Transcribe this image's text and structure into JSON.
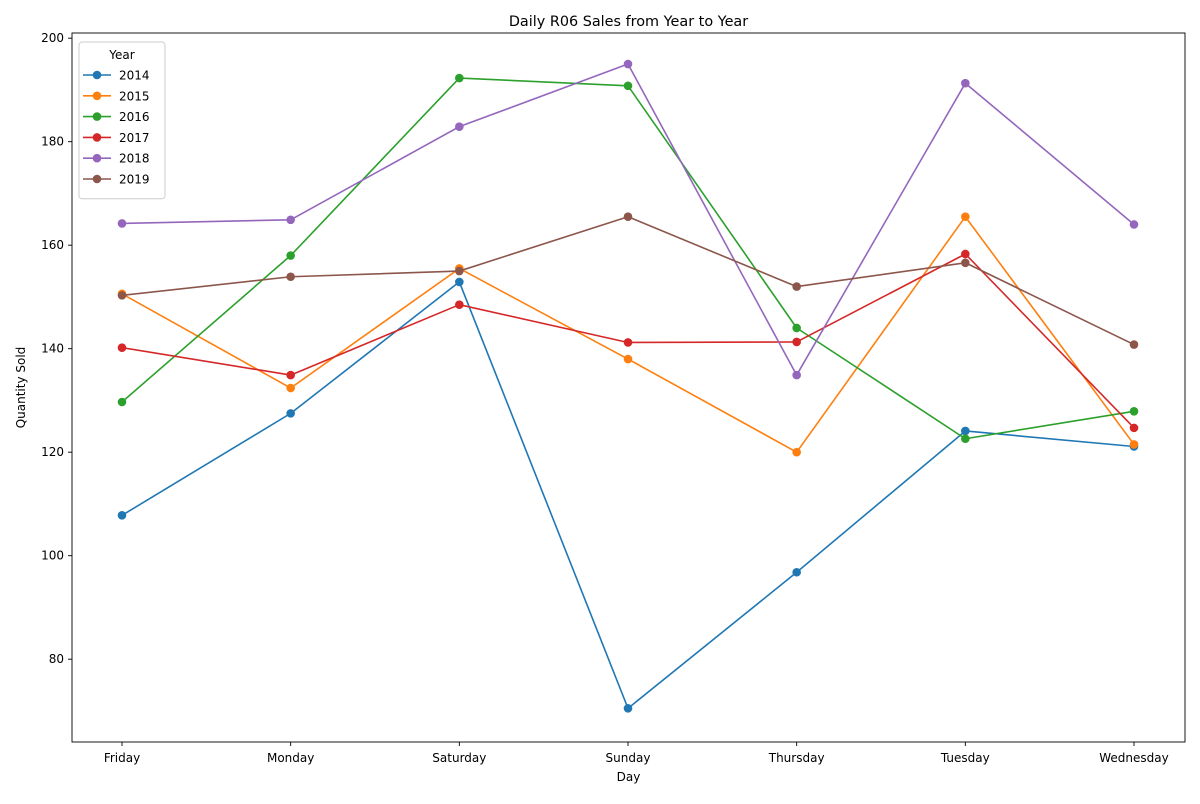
{
  "chart_data": {
    "type": "line",
    "title": "Daily R06 Sales from Year to Year",
    "xlabel": "Day",
    "ylabel": "Quantity Sold",
    "categories": [
      "Friday",
      "Monday",
      "Saturday",
      "Sunday",
      "Thursday",
      "Tuesday",
      "Wednesday"
    ],
    "ylim": [
      64,
      201
    ],
    "yticks": [
      80,
      100,
      120,
      140,
      160,
      180,
      200
    ],
    "grid": false,
    "legend": {
      "title": "Year",
      "position": "top-left"
    },
    "series": [
      {
        "name": "2014",
        "color": "#1f77b4",
        "values": [
          107.8,
          127.5,
          152.9,
          70.5,
          96.8,
          124.1,
          121.1
        ]
      },
      {
        "name": "2015",
        "color": "#ff7f0e",
        "values": [
          150.6,
          132.4,
          155.5,
          138.0,
          120.0,
          165.5,
          121.5
        ]
      },
      {
        "name": "2016",
        "color": "#2ca02c",
        "values": [
          129.7,
          158.0,
          192.3,
          190.8,
          144.0,
          122.6,
          127.9
        ]
      },
      {
        "name": "2017",
        "color": "#d62728",
        "values": [
          140.2,
          134.9,
          148.5,
          141.2,
          141.3,
          158.3,
          124.7
        ]
      },
      {
        "name": "2018",
        "color": "#9467bd",
        "values": [
          164.2,
          164.9,
          182.9,
          195.0,
          134.9,
          191.3,
          164.0
        ]
      },
      {
        "name": "2019",
        "color": "#8c564b",
        "values": [
          150.3,
          153.9,
          155.0,
          165.5,
          152.0,
          156.6,
          140.8
        ]
      }
    ]
  }
}
